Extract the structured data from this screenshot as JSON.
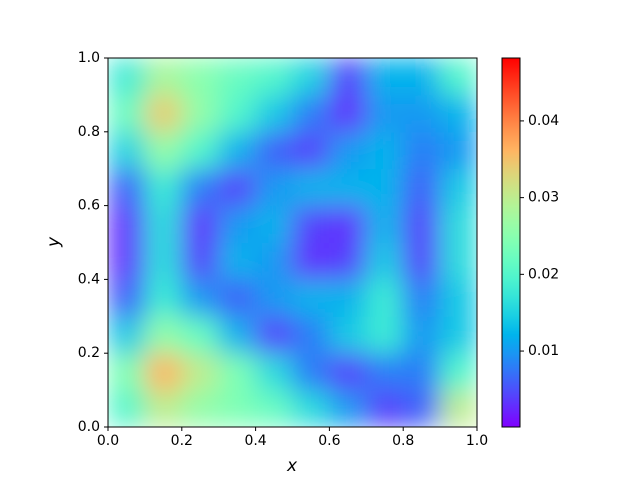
{
  "chart_data": {
    "type": "heatmap",
    "xlabel": "x",
    "ylabel": "y",
    "colormap": "rainbow",
    "x": [
      0.05,
      0.15,
      0.25,
      0.35,
      0.45,
      0.55,
      0.65,
      0.75,
      0.85,
      0.95
    ],
    "y": [
      0.05,
      0.15,
      0.25,
      0.35,
      0.45,
      0.55,
      0.65,
      0.75,
      0.85,
      0.95
    ],
    "z": [
      [
        0.02,
        0.03,
        0.026,
        0.024,
        0.022,
        0.016,
        0.01,
        0.004,
        0.006,
        0.03
      ],
      [
        0.024,
        0.036,
        0.03,
        0.024,
        0.016,
        0.008,
        0.004,
        0.008,
        0.008,
        0.02
      ],
      [
        0.014,
        0.026,
        0.022,
        0.012,
        0.004,
        0.008,
        0.014,
        0.018,
        0.01,
        0.014
      ],
      [
        0.006,
        0.018,
        0.01,
        0.006,
        0.01,
        0.012,
        0.012,
        0.018,
        0.008,
        0.014
      ],
      [
        0.003,
        0.016,
        0.004,
        0.012,
        0.01,
        0.003,
        0.004,
        0.014,
        0.004,
        0.016
      ],
      [
        0.003,
        0.016,
        0.003,
        0.01,
        0.012,
        0.004,
        0.003,
        0.012,
        0.004,
        0.016
      ],
      [
        0.006,
        0.018,
        0.008,
        0.004,
        0.01,
        0.012,
        0.012,
        0.012,
        0.006,
        0.014
      ],
      [
        0.015,
        0.026,
        0.02,
        0.012,
        0.006,
        0.004,
        0.01,
        0.012,
        0.008,
        0.01
      ],
      [
        0.022,
        0.034,
        0.026,
        0.02,
        0.014,
        0.008,
        0.003,
        0.01,
        0.01,
        0.012
      ],
      [
        0.018,
        0.028,
        0.025,
        0.022,
        0.02,
        0.015,
        0.004,
        0.012,
        0.012,
        0.02
      ]
    ],
    "xlim": [
      0,
      1
    ],
    "ylim": [
      0,
      1
    ],
    "xticks": [
      {
        "value": 0,
        "label": "0.0"
      },
      {
        "value": 0.2,
        "label": "0.2"
      },
      {
        "value": 0.4,
        "label": "0.4"
      },
      {
        "value": 0.6,
        "label": "0.6"
      },
      {
        "value": 0.8,
        "label": "0.8"
      },
      {
        "value": 1,
        "label": "1.0"
      }
    ],
    "yticks": [
      {
        "value": 0,
        "label": "0.0"
      },
      {
        "value": 0.2,
        "label": "0.2"
      },
      {
        "value": 0.4,
        "label": "0.4"
      },
      {
        "value": 0.6,
        "label": "0.6"
      },
      {
        "value": 0.8,
        "label": "0.8"
      },
      {
        "value": 1,
        "label": "1.0"
      }
    ],
    "clim": [
      0.0001,
      0.0482
    ],
    "cticks": [
      0.01,
      0.02,
      0.03,
      0.04
    ]
  }
}
